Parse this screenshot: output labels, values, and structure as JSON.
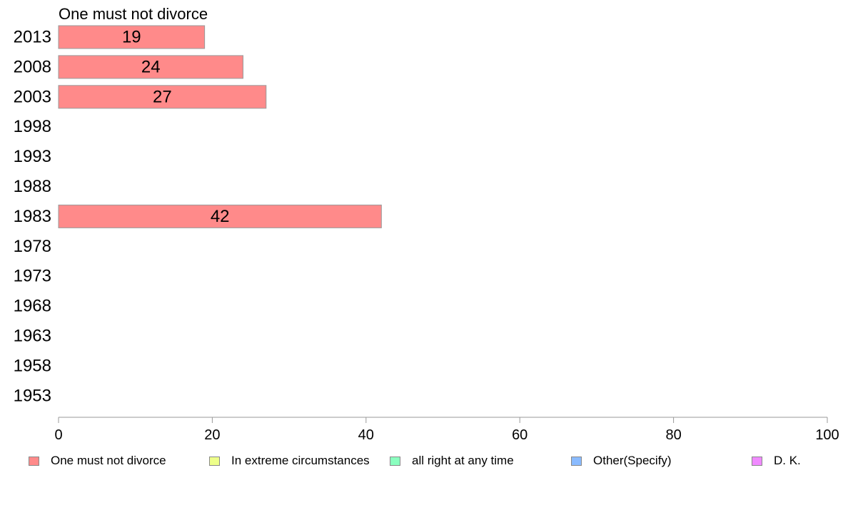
{
  "chart_data": {
    "type": "bar",
    "orientation": "horizontal",
    "title": "One must not divorce",
    "categories": [
      "2013",
      "2008",
      "2003",
      "1998",
      "1993",
      "1988",
      "1983",
      "1978",
      "1973",
      "1968",
      "1963",
      "1958",
      "1953"
    ],
    "series": [
      {
        "name": "One must not divorce",
        "color": "#ff8a8a",
        "values": [
          19,
          24,
          27,
          null,
          null,
          null,
          42,
          null,
          null,
          null,
          null,
          null,
          null
        ]
      }
    ],
    "xlim": [
      0,
      100
    ],
    "xticks": [
      0,
      20,
      40,
      60,
      80,
      100
    ],
    "grid": false,
    "legend_position": "bottom",
    "legend": [
      {
        "label": "One must not divorce",
        "color": "#ff8a8a"
      },
      {
        "label": "In extreme circumstances",
        "color": "#eeff8a"
      },
      {
        "label": "all right at any time",
        "color": "#8affbf"
      },
      {
        "label": "Other(Specify)",
        "color": "#8abbff"
      },
      {
        "label": "D. K.",
        "color": "#f08aff"
      }
    ]
  }
}
